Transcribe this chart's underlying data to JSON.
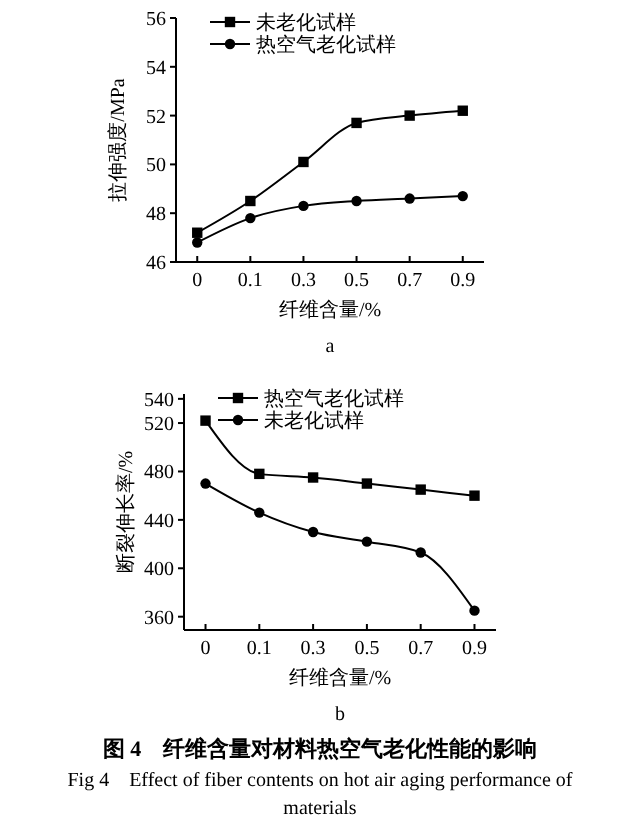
{
  "chart_data": [
    {
      "type": "line",
      "categories": [
        "0",
        "0.1",
        "0.3",
        "0.5",
        "0.7",
        "0.9"
      ],
      "xlabel": "纤维含量/%",
      "ylabel": "拉伸强度/MPa",
      "ylim": [
        46,
        56
      ],
      "yticks": [
        46,
        48,
        50,
        52,
        54,
        56
      ],
      "legend": "top left",
      "annotations": [
        "a"
      ],
      "series": [
        {
          "name": "未老化试样",
          "color": "#000000",
          "marker": "square",
          "values": [
            47.2,
            48.5,
            50.1,
            51.7,
            52.0,
            52.2
          ]
        },
        {
          "name": "热空气老化试样",
          "color": "#000000",
          "marker": "circle",
          "values": [
            46.8,
            47.8,
            48.3,
            48.5,
            48.6,
            48.7
          ]
        }
      ]
    },
    {
      "type": "line",
      "categories": [
        "0",
        "0.1",
        "0.3",
        "0.5",
        "0.7",
        "0.9"
      ],
      "xlabel": "纤维含量/%",
      "ylabel": "断裂伸长率/%",
      "ylim": [
        349,
        544
      ],
      "yticks": [
        360,
        400,
        440,
        480,
        520,
        540
      ],
      "legend": "top left",
      "annotations": [
        "b",
        "图 4　纤维含量对材料热空气老化性能的影响",
        "Fig 4　Effect of fiber contents on hot air aging performance of materials"
      ],
      "series": [
        {
          "name": "热空气老化试样",
          "color": "#000000",
          "marker": "square",
          "values": [
            522,
            478,
            475,
            470,
            465,
            460
          ]
        },
        {
          "name": "未老化试样",
          "color": "#000000",
          "marker": "circle",
          "values": [
            470,
            446,
            430,
            422,
            413,
            365
          ]
        }
      ]
    }
  ]
}
